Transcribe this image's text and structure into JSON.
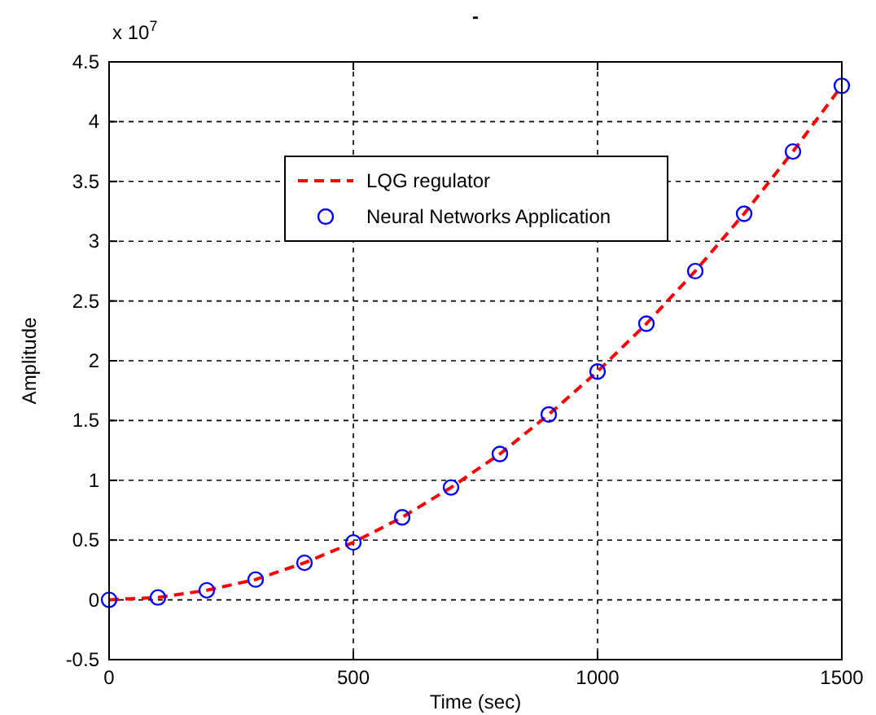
{
  "chart_data": {
    "type": "line",
    "title": "-",
    "xlabel": "Time (sec)",
    "ylabel": "Amplitude",
    "annotations": [
      "x 10$^{7}$"
    ],
    "xlim": [
      0,
      1500
    ],
    "xticks": [
      0,
      500,
      1000,
      1500
    ],
    "ylim": [
      -0.5,
      4.5
    ],
    "yticks": [
      -0.5,
      0,
      0.5,
      1,
      1.5,
      2,
      2.5,
      3,
      3.5,
      4,
      4.5
    ],
    "grid": true,
    "legend": "top",
    "series": [
      {
        "name": "LQG regulator",
        "color": "#ff0000",
        "line_style": "dashed",
        "marker": "none",
        "x": [
          0,
          100,
          200,
          300,
          400,
          500,
          600,
          700,
          800,
          900,
          1000,
          1100,
          1200,
          1300,
          1400,
          1500
        ],
        "values": [
          0,
          0.02,
          0.08,
          0.17,
          0.31,
          0.48,
          0.69,
          0.94,
          1.22,
          1.55,
          1.91,
          2.31,
          2.75,
          3.23,
          3.75,
          4.3
        ]
      },
      {
        "name": "Neural Networks Application",
        "type": "scatter",
        "color": "#0000ff",
        "marker": "circle",
        "x": [
          0,
          100,
          200,
          300,
          400,
          500,
          600,
          700,
          800,
          900,
          1000,
          1100,
          1200,
          1300,
          1400,
          1500
        ],
        "values": [
          0,
          0.02,
          0.08,
          0.17,
          0.31,
          0.48,
          0.69,
          0.94,
          1.22,
          1.55,
          1.91,
          2.31,
          2.75,
          3.23,
          3.75,
          4.3
        ]
      }
    ]
  }
}
